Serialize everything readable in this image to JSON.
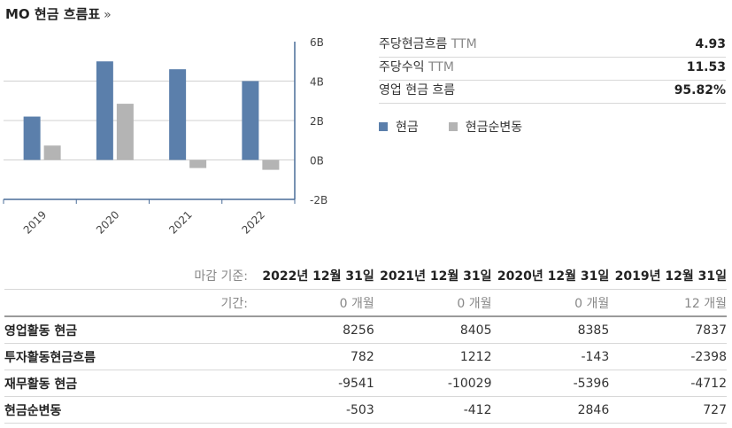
{
  "header": {
    "title": "MO 현금 흐름표",
    "arrow": "»"
  },
  "stats": [
    {
      "label": "주당현금흐름",
      "suffix": "TTM",
      "value": "4.93"
    },
    {
      "label": "주당수익",
      "suffix": "TTM",
      "value": "11.53"
    },
    {
      "label": "영업 현금 흐름",
      "suffix": "",
      "value": "95.82%"
    }
  ],
  "legend": [
    {
      "name": "현금",
      "color": "#5b7fab"
    },
    {
      "name": "현금순변동",
      "color": "#b4b4b4"
    }
  ],
  "chart_data": {
    "type": "bar",
    "categories": [
      "2019",
      "2020",
      "2021",
      "2022"
    ],
    "series": [
      {
        "name": "현금",
        "color": "#5b7fab",
        "values": [
          2.2,
          5.0,
          4.6,
          4.0
        ]
      },
      {
        "name": "현금순변동",
        "color": "#b4b4b4",
        "values": [
          0.73,
          2.85,
          -0.41,
          -0.5
        ]
      }
    ],
    "y_ticks": [
      "6B",
      "4B",
      "2B",
      "0B",
      "-2B"
    ],
    "ylim": [
      -2,
      6
    ],
    "grid": true,
    "legend": "right"
  },
  "table": {
    "period_end_label": "마감 기준:",
    "period_label": "기간:",
    "columns": [
      "2022년 12월 31일",
      "2021년 12월 31일",
      "2020년 12월 31일",
      "2019년 12월 31일"
    ],
    "periods": [
      "0 개월",
      "0 개월",
      "0 개월",
      "12 개월"
    ],
    "rows": [
      {
        "name": "영업활동 현금",
        "values": [
          "8256",
          "8405",
          "8385",
          "7837"
        ]
      },
      {
        "name": "투자활동현금흐름",
        "values": [
          "782",
          "1212",
          "-143",
          "-2398"
        ]
      },
      {
        "name": "재무활동 현금",
        "values": [
          "-9541",
          "-10029",
          "-5396",
          "-4712"
        ]
      },
      {
        "name": "현금순변동",
        "values": [
          "-503",
          "-412",
          "2846",
          "727"
        ]
      }
    ]
  }
}
